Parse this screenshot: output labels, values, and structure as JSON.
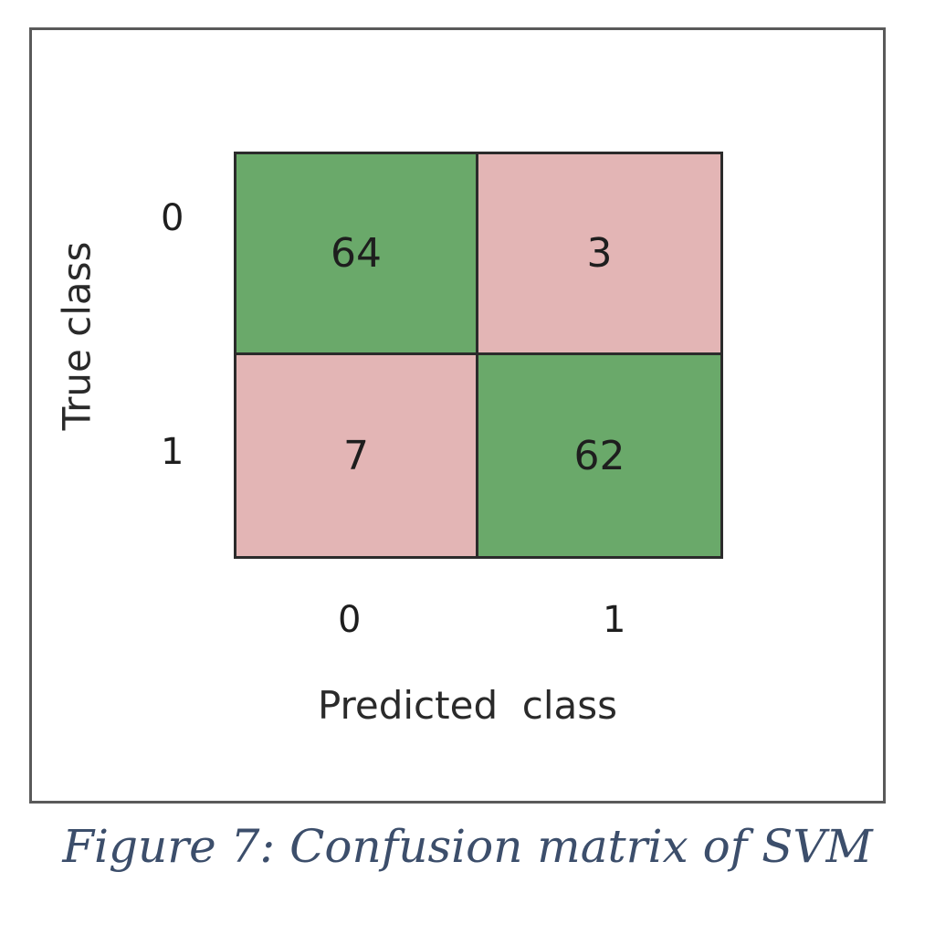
{
  "chart_data": {
    "type": "heatmap",
    "xlabel": "Predicted  class",
    "ylabel": "True class",
    "x_ticks": [
      "0",
      "1"
    ],
    "y_ticks": [
      "0",
      "1"
    ],
    "matrix": [
      [
        64,
        3
      ],
      [
        7,
        62
      ]
    ],
    "colors": {
      "correct": "#6aa96a",
      "incorrect": "#e3b5b5"
    }
  },
  "caption": "Figure 7: Confusion matrix of SVM"
}
